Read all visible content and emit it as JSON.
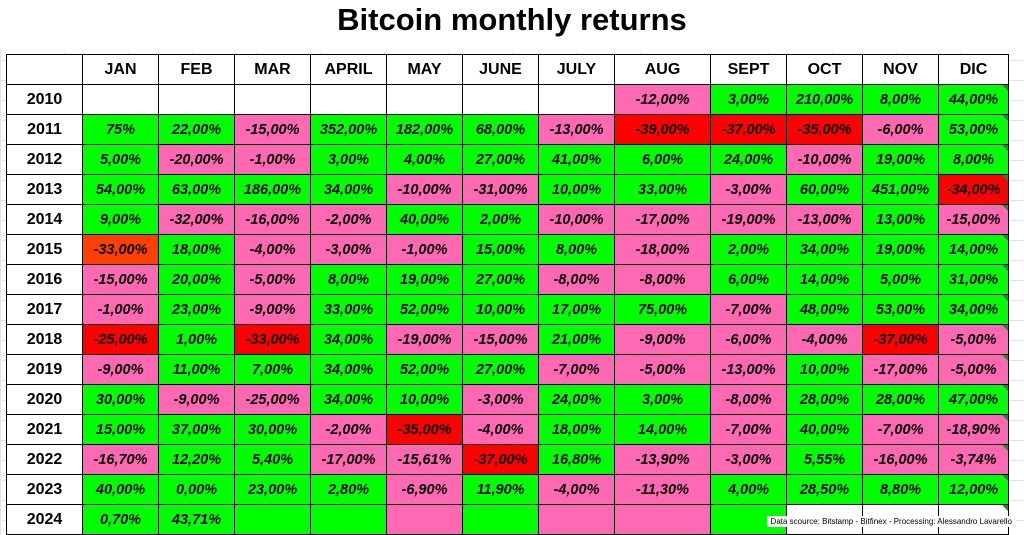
{
  "title": "Bitcoin monthly returns",
  "source": "Data scource: Bitstamp - Bitfinex - Processing: Alessandro Lavarello",
  "colors": {
    "green": "#00ff00",
    "pink": "#ff69b4",
    "red": "#ff0000",
    "orange": "#ff4000",
    "empty": "#ffffff"
  },
  "chart_data": {
    "type": "table",
    "title": "Bitcoin monthly returns",
    "columns": [
      "JAN",
      "FEB",
      "MAR",
      "APRIL",
      "MAY",
      "JUNE",
      "JULY",
      "AUG",
      "SEPT",
      "OCT",
      "NOV",
      "DIC"
    ],
    "rows": [
      {
        "year": "2010",
        "values": [
          "",
          "",
          "",
          "",
          "",
          "",
          "",
          "-12,00%",
          "3,00%",
          "210,00%",
          "8,00%",
          "44,00%"
        ],
        "colors": [
          "empty",
          "empty",
          "empty",
          "empty",
          "empty",
          "empty",
          "empty",
          "pink",
          "green",
          "green",
          "green",
          "green"
        ]
      },
      {
        "year": "2011",
        "values": [
          "75%",
          "22,00%",
          "-15,00%",
          "352,00%",
          "182,00%",
          "68,00%",
          "-13,00%",
          "-39,00%",
          "-37,00%",
          "-35,00%",
          "-6,00%",
          "53,00%"
        ],
        "colors": [
          "green",
          "green",
          "pink",
          "green",
          "green",
          "green",
          "pink",
          "red",
          "red",
          "red",
          "pink",
          "green"
        ]
      },
      {
        "year": "2012",
        "values": [
          "5,00%",
          "-20,00%",
          "-1,00%",
          "3,00%",
          "4,00%",
          "27,00%",
          "41,00%",
          "6,00%",
          "24,00%",
          "-10,00%",
          "19,00%",
          "8,00%"
        ],
        "colors": [
          "green",
          "pink",
          "pink",
          "green",
          "green",
          "green",
          "green",
          "green",
          "green",
          "pink",
          "green",
          "green"
        ]
      },
      {
        "year": "2013",
        "values": [
          "54,00%",
          "63,00%",
          "186,00%",
          "34,00%",
          "-10,00%",
          "-31,00%",
          "10,00%",
          "33,00%",
          "-3,00%",
          "60,00%",
          "451,00%",
          "-34,00%"
        ],
        "colors": [
          "green",
          "green",
          "green",
          "green",
          "pink",
          "pink",
          "green",
          "green",
          "pink",
          "green",
          "green",
          "red"
        ]
      },
      {
        "year": "2014",
        "values": [
          "9,00%",
          "-32,00%",
          "-16,00%",
          "-2,00%",
          "40,00%",
          "2,00%",
          "-10,00%",
          "-17,00%",
          "-19,00%",
          "-13,00%",
          "13,00%",
          "-15,00%"
        ],
        "colors": [
          "green",
          "pink",
          "pink",
          "pink",
          "green",
          "green",
          "pink",
          "pink",
          "pink",
          "pink",
          "green",
          "pink"
        ]
      },
      {
        "year": "2015",
        "values": [
          "-33,00%",
          "18,00%",
          "-4,00%",
          "-3,00%",
          "-1,00%",
          "15,00%",
          "8,00%",
          "-18,00%",
          "2,00%",
          "34,00%",
          "19,00%",
          "14,00%"
        ],
        "colors": [
          "orange",
          "green",
          "pink",
          "pink",
          "pink",
          "green",
          "green",
          "pink",
          "green",
          "green",
          "green",
          "green"
        ]
      },
      {
        "year": "2016",
        "values": [
          "-15,00%",
          "20,00%",
          "-5,00%",
          "8,00%",
          "19,00%",
          "27,00%",
          "-8,00%",
          "-8,00%",
          "6,00%",
          "14,00%",
          "5,00%",
          "31,00%"
        ],
        "colors": [
          "pink",
          "green",
          "pink",
          "green",
          "green",
          "green",
          "pink",
          "pink",
          "green",
          "green",
          "green",
          "green"
        ]
      },
      {
        "year": "2017",
        "values": [
          "-1,00%",
          "23,00%",
          "-9,00%",
          "33,00%",
          "52,00%",
          "10,00%",
          "17,00%",
          "75,00%",
          "-7,00%",
          "48,00%",
          "53,00%",
          "34,00%"
        ],
        "colors": [
          "pink",
          "green",
          "pink",
          "green",
          "green",
          "green",
          "green",
          "green",
          "pink",
          "green",
          "green",
          "green"
        ]
      },
      {
        "year": "2018",
        "values": [
          "-25,00%",
          "1,00%",
          "-33,00%",
          "34,00%",
          "-19,00%",
          "-15,00%",
          "21,00%",
          "-9,00%",
          "-6,00%",
          "-4,00%",
          "-37,00%",
          "-5,00%"
        ],
        "colors": [
          "red",
          "green",
          "red",
          "green",
          "pink",
          "pink",
          "green",
          "pink",
          "pink",
          "pink",
          "red",
          "pink"
        ]
      },
      {
        "year": "2019",
        "values": [
          "-9,00%",
          "11,00%",
          "7,00%",
          "34,00%",
          "52,00%",
          "27,00%",
          "-7,00%",
          "-5,00%",
          "-13,00%",
          "10,00%",
          "-17,00%",
          "-5,00%"
        ],
        "colors": [
          "pink",
          "green",
          "green",
          "green",
          "green",
          "green",
          "pink",
          "pink",
          "pink",
          "green",
          "pink",
          "pink"
        ]
      },
      {
        "year": "2020",
        "values": [
          "30,00%",
          "-9,00%",
          "-25,00%",
          "34,00%",
          "10,00%",
          "-3,00%",
          "24,00%",
          "3,00%",
          "-8,00%",
          "28,00%",
          "28,00%",
          "47,00%"
        ],
        "colors": [
          "green",
          "pink",
          "pink",
          "green",
          "green",
          "pink",
          "green",
          "green",
          "pink",
          "green",
          "green",
          "green"
        ]
      },
      {
        "year": "2021",
        "values": [
          "15,00%",
          "37,00%",
          "30,00%",
          "-2,00%",
          "-35,00%",
          "-4,00%",
          "18,00%",
          "14,00%",
          "-7,00%",
          "40,00%",
          "-7,00%",
          "-18,90%"
        ],
        "colors": [
          "green",
          "green",
          "green",
          "pink",
          "red",
          "pink",
          "green",
          "green",
          "pink",
          "green",
          "pink",
          "pink"
        ]
      },
      {
        "year": "2022",
        "values": [
          "-16,70%",
          "12,20%",
          "5,40%",
          "-17,00%",
          "-15,61%",
          "-37,00%",
          "16,80%",
          "-13,90%",
          "-3,00%",
          "5,55%",
          "-16,00%",
          "-3,74%"
        ],
        "colors": [
          "pink",
          "green",
          "green",
          "pink",
          "pink",
          "red",
          "green",
          "pink",
          "pink",
          "green",
          "pink",
          "pink"
        ]
      },
      {
        "year": "2023",
        "values": [
          "40,00%",
          "0,00%",
          "23,00%",
          "2,80%",
          "-6,90%",
          "11,90%",
          "-4,00%",
          "-11,30%",
          "4,00%",
          "28,50%",
          "8,80%",
          "12,00%"
        ],
        "colors": [
          "green",
          "green",
          "green",
          "green",
          "pink",
          "green",
          "pink",
          "pink",
          "green",
          "green",
          "green",
          "green"
        ]
      },
      {
        "year": "2024",
        "values": [
          "0,70%",
          "43,71%",
          "",
          "",
          "",
          "",
          "",
          "",
          "",
          "",
          "",
          ""
        ],
        "colors": [
          "green",
          "green",
          "green",
          "green",
          "pink",
          "green",
          "pink",
          "pink",
          "green",
          "empty",
          "empty",
          "empty"
        ]
      }
    ]
  }
}
